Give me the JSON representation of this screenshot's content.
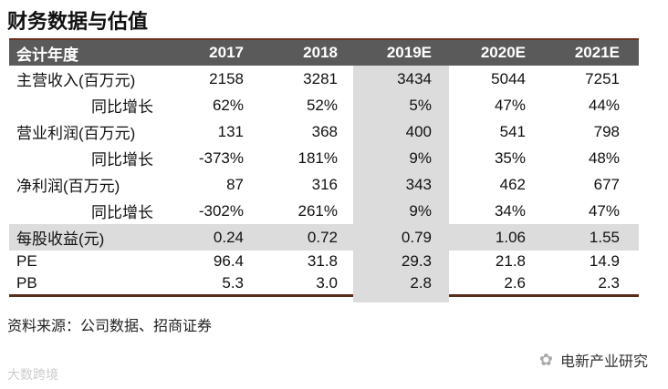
{
  "title": "财务数据与估值",
  "header": [
    "会计年度",
    "2017",
    "2018",
    "2019E",
    "2020E",
    "2021E"
  ],
  "rows": [
    {
      "label": "主营收入(百万元)",
      "values": [
        "2158",
        "3281",
        "3434",
        "5044",
        "7251"
      ]
    },
    {
      "label": "同比增长",
      "values": [
        "62%",
        "52%",
        "5%",
        "47%",
        "44%"
      ]
    },
    {
      "label": "营业利润(百万元)",
      "values": [
        "131",
        "368",
        "400",
        "541",
        "798"
      ]
    },
    {
      "label": "同比增长",
      "values": [
        "-373%",
        "181%",
        "9%",
        "35%",
        "48%"
      ]
    },
    {
      "label": "净利润(百万元)",
      "values": [
        "87",
        "316",
        "343",
        "462",
        "677"
      ]
    },
    {
      "label": "同比增长",
      "values": [
        "-302%",
        "261%",
        "9%",
        "34%",
        "47%"
      ]
    },
    {
      "label": "每股收益(元)",
      "values": [
        "0.24",
        "0.72",
        "0.79",
        "1.06",
        "1.55"
      ]
    },
    {
      "label": "PE",
      "values": [
        "96.4",
        "31.8",
        "29.3",
        "21.8",
        "14.9"
      ]
    },
    {
      "label": "PB",
      "values": [
        "5.3",
        "3.0",
        "2.8",
        "2.6",
        "2.3"
      ]
    }
  ],
  "source": "资料来源：公司数据、招商证券",
  "brand": "电新产业研究",
  "watermark": "大数跨境"
}
